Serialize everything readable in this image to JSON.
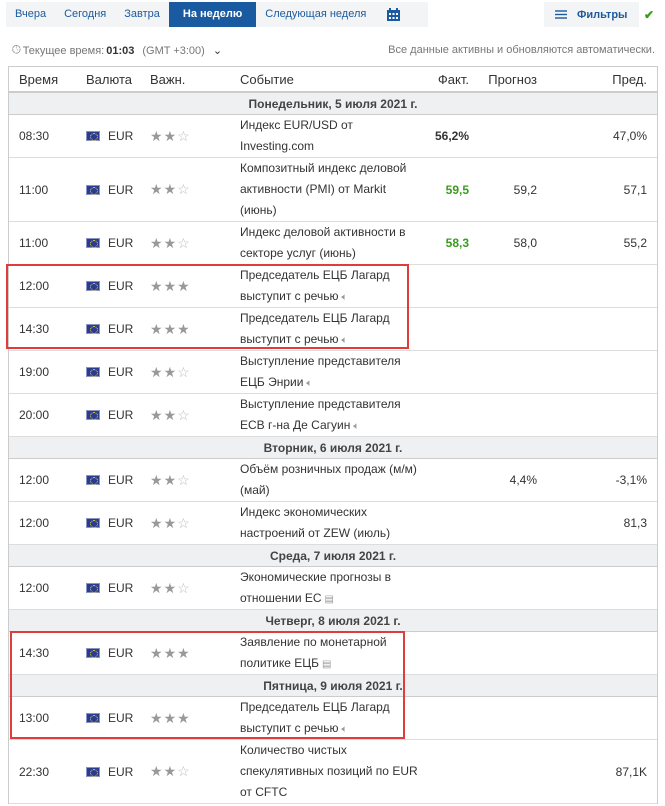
{
  "tabs": [
    "Вчера",
    "Сегодня",
    "Завтра",
    "На неделю",
    "Следующая неделя"
  ],
  "active_tab": "На неделю",
  "filters_label": "Фильтры",
  "current_time_label": "Текущее время:",
  "current_time": "01:03",
  "timezone": "(GMT +3:00)",
  "auto_note": "Все данные активны и обновляются автоматически.",
  "headers": {
    "time": "Время",
    "currency": "Валюта",
    "importance": "Важн.",
    "event": "Событие",
    "actual": "Факт.",
    "forecast": "Прогноз",
    "previous": "Пред."
  },
  "colors": {
    "accent": "#1a5aa0",
    "positive": "#3a9b1f",
    "highlight": "#e03c3c"
  },
  "days": {
    "mon": "Понедельник, 5 июля 2021 г.",
    "tue": "Вторник, 6 июля 2021 г.",
    "wed": "Среда, 7 июля 2021 г.",
    "thu": "Четверг, 8 июля 2021 г.",
    "fri": "Пятница, 9 июля 2021 г."
  },
  "rows": [
    {
      "time": "08:30",
      "cur": "EUR",
      "imp": 2,
      "event": "Индекс EUR/USD от Investing.com",
      "actual": "56,2%",
      "forecast": "",
      "prev": "47,0%"
    },
    {
      "time": "11:00",
      "cur": "EUR",
      "imp": 2,
      "event": "Композитный индекс деловой активности (PMI) от Markit (июнь)",
      "actual": "59,5",
      "forecast": "59,2",
      "prev": "57,1"
    },
    {
      "time": "11:00",
      "cur": "EUR",
      "imp": 2,
      "event": "Индекс деловой активности в секторе услуг (июнь)",
      "actual": "58,3",
      "forecast": "58,0",
      "prev": "55,2"
    },
    {
      "time": "12:00",
      "cur": "EUR",
      "imp": 3,
      "event": "Председатель ЕЦБ Лагард выступит с речью",
      "icon": "speaker-icon"
    },
    {
      "time": "14:30",
      "cur": "EUR",
      "imp": 3,
      "event": "Председатель ЕЦБ Лагард выступит с речью",
      "icon": "speaker-icon"
    },
    {
      "time": "19:00",
      "cur": "EUR",
      "imp": 2,
      "event": "Выступление представителя ЕЦБ Энрии",
      "icon": "speaker-icon"
    },
    {
      "time": "20:00",
      "cur": "EUR",
      "imp": 2,
      "event": "Выступление представителя ECB г-на Де Сагуин",
      "icon": "speaker-icon"
    },
    {
      "time": "12:00",
      "cur": "EUR",
      "imp": 2,
      "event": "Объём розничных продаж (м/м) (май)",
      "actual": "",
      "forecast": "4,4%",
      "prev": "-3,1%"
    },
    {
      "time": "12:00",
      "cur": "EUR",
      "imp": 2,
      "event": "Индекс экономических настроений от ZEW (июль)",
      "actual": "",
      "forecast": "",
      "prev": "81,3"
    },
    {
      "time": "12:00",
      "cur": "EUR",
      "imp": 2,
      "event": "Экономические прогнозы в отношении ЕС",
      "icon": "document-icon"
    },
    {
      "time": "14:30",
      "cur": "EUR",
      "imp": 3,
      "event": "Заявление по монетарной политике ЕЦБ",
      "icon": "document-icon"
    },
    {
      "time": "13:00",
      "cur": "EUR",
      "imp": 3,
      "event": "Председатель ЕЦБ Лагард выступит с речью",
      "icon": "speaker-icon"
    },
    {
      "time": "22:30",
      "cur": "EUR",
      "imp": 2,
      "event": "Количество чистых спекулятивных позиций по EUR от CFTC",
      "actual": "",
      "forecast": "",
      "prev": "87,1K"
    }
  ]
}
